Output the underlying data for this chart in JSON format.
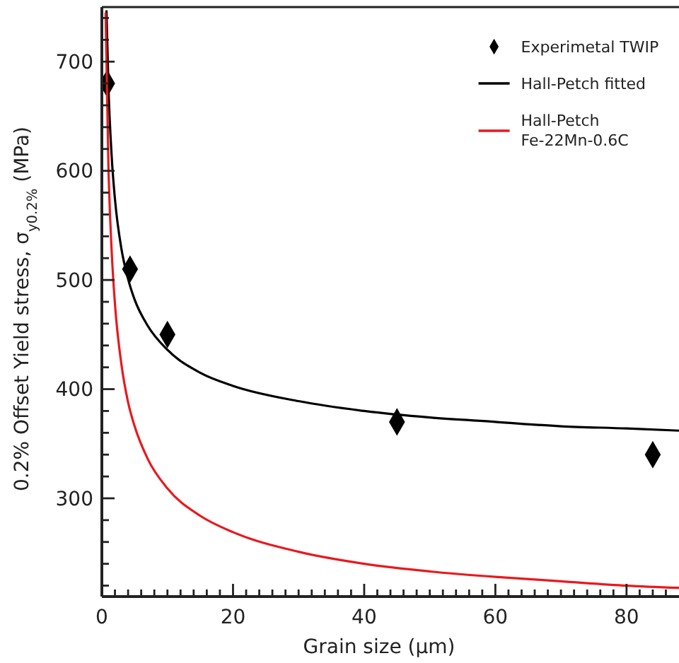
{
  "chart_data": {
    "type": "scatter",
    "xlabel": "Grain size (µm)",
    "ylabel": "0.2% Offset Yield stress, σ$_{y0.2%}$ (MPa)",
    "xlim": [
      0,
      88
    ],
    "ylim": [
      210,
      750
    ],
    "xticks": [
      0,
      {
        "value": 2,
        "label": null
      },
      {
        "value": 4,
        "label": null
      },
      {
        "value": 6,
        "label": null
      },
      {
        "value": 8,
        "label": null
      },
      {
        "value": 10,
        "label": null
      },
      {
        "value": 12,
        "label": null
      },
      {
        "value": 14,
        "label": null
      },
      {
        "value": 16,
        "label": null
      },
      {
        "value": 18,
        "label": null
      },
      20,
      {
        "value": 22,
        "label": null
      },
      {
        "value": 24,
        "label": null
      },
      {
        "value": 26,
        "label": null
      },
      {
        "value": 28,
        "label": null
      },
      {
        "value": 30,
        "label": null
      },
      {
        "value": 32,
        "label": null
      },
      {
        "value": 34,
        "label": null
      },
      {
        "value": 36,
        "label": null
      },
      {
        "value": 38,
        "label": null
      },
      40,
      {
        "value": 42,
        "label": null
      },
      {
        "value": 44,
        "label": null
      },
      {
        "value": 46,
        "label": null
      },
      {
        "value": 48,
        "label": null
      },
      {
        "value": 50,
        "label": null
      },
      {
        "value": 52,
        "label": null
      },
      {
        "value": 54,
        "label": null
      },
      {
        "value": 56,
        "label": null
      },
      {
        "value": 58,
        "label": null
      },
      60,
      {
        "value": 62,
        "label": null
      },
      {
        "value": 64,
        "label": null
      },
      {
        "value": 66,
        "label": null
      },
      {
        "value": 68,
        "label": null
      },
      {
        "value": 70,
        "label": null
      },
      {
        "value": 72,
        "label": null
      },
      {
        "value": 74,
        "label": null
      },
      {
        "value": 76,
        "label": null
      },
      {
        "value": 78,
        "label": null
      },
      80,
      {
        "value": 82,
        "label": null
      },
      {
        "value": 84,
        "label": null
      },
      {
        "value": 86,
        "label": null
      }
    ],
    "yticks": [
      {
        "value": 220,
        "label": null
      },
      {
        "value": 240,
        "label": null
      },
      {
        "value": 260,
        "label": null
      },
      {
        "value": 280,
        "label": null
      },
      300,
      {
        "value": 320,
        "label": null
      },
      {
        "value": 340,
        "label": null
      },
      {
        "value": 360,
        "label": null
      },
      {
        "value": 380,
        "label": null
      },
      400,
      {
        "value": 420,
        "label": null
      },
      {
        "value": 440,
        "label": null
      },
      {
        "value": 460,
        "label": null
      },
      {
        "value": 480,
        "label": null
      },
      500,
      {
        "value": 520,
        "label": null
      },
      {
        "value": 540,
        "label": null
      },
      {
        "value": 560,
        "label": null
      },
      {
        "value": 580,
        "label": null
      },
      600,
      {
        "value": 620,
        "label": null
      },
      {
        "value": 640,
        "label": null
      },
      {
        "value": 660,
        "label": null
      },
      {
        "value": 680,
        "label": null
      },
      700,
      {
        "value": 720,
        "label": null
      },
      {
        "value": 740,
        "label": null
      }
    ],
    "legend": "top right",
    "grid": false,
    "series": [
      {
        "name": "Experimetal TWIP",
        "marker": "diamond",
        "color": "#000000",
        "x": [
          0.8,
          4.3,
          10,
          45,
          84
        ],
        "values": [
          680,
          510,
          450,
          370,
          340
        ]
      },
      {
        "name": "Hall-Petch fitted",
        "type": "line",
        "color": "#000000",
        "x": [
          0.7,
          1,
          1.5,
          2,
          3,
          4,
          5,
          7,
          10,
          15,
          20,
          30,
          40,
          50,
          60,
          70,
          80,
          88
        ],
        "values": [
          747,
          678,
          613,
          574,
          528,
          501,
          482,
          458,
          436,
          415,
          403,
          389,
          380,
          374,
          370,
          366,
          364,
          362
        ]
      },
      {
        "name": "Hall-Petch Fe-22Mn-0.6C",
        "type": "line",
        "color": "#e8191e",
        "x": [
          0.57,
          1,
          1.5,
          2,
          3,
          4,
          5,
          7,
          10,
          15,
          20,
          30,
          40,
          50,
          60,
          70,
          80,
          88
        ],
        "values": [
          745,
          605,
          526,
          478,
          422,
          388,
          366,
          336,
          309,
          284,
          269,
          251,
          240,
          233,
          228,
          224,
          220,
          218
        ]
      }
    ]
  }
}
